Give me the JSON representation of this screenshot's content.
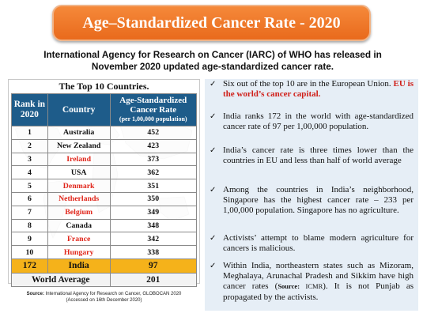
{
  "banner": {
    "title": "Age–Standardized Cancer Rate - 2020"
  },
  "subtitle": "International Agency for Research on Cancer (IARC) of WHO has released in November 2020 updated age-standardized cancer rate.",
  "table": {
    "title": "The Top 10 Countries.",
    "headers": {
      "rank_line1": "Rank in",
      "rank_line2": "2020",
      "country": "Country",
      "rate_line1": "Age-Standardized",
      "rate_line2": "Cancer Rate",
      "rate_line3": "(per 1,00,000 population)"
    },
    "rows": [
      {
        "rank": "1",
        "country": "Australia",
        "rate": "452",
        "eu": false
      },
      {
        "rank": "2",
        "country": "New Zealand",
        "rate": "423",
        "eu": false
      },
      {
        "rank": "3",
        "country": "Ireland",
        "rate": "373",
        "eu": true
      },
      {
        "rank": "4",
        "country": "USA",
        "rate": "362",
        "eu": false
      },
      {
        "rank": "5",
        "country": "Denmark",
        "rate": "351",
        "eu": true
      },
      {
        "rank": "6",
        "country": "Netherlands",
        "rate": "350",
        "eu": true
      },
      {
        "rank": "7",
        "country": "Belgium",
        "rate": "349",
        "eu": true
      },
      {
        "rank": "8",
        "country": "Canada",
        "rate": "348",
        "eu": false
      },
      {
        "rank": "9",
        "country": "France",
        "rate": "342",
        "eu": true
      },
      {
        "rank": "10",
        "country": "Hungary",
        "rate": "338",
        "eu": true
      }
    ],
    "india": {
      "rank": "172",
      "country": "India",
      "rate": "97"
    },
    "world": {
      "label": "World Average",
      "rate": "201"
    }
  },
  "source": {
    "label": "Source:",
    "text": "International Agency for Research on Cancer, GLOBOCAN 2020",
    "accessed": "(Accessed on 16th December 2020)"
  },
  "bullets": {
    "b1": {
      "text": "Six out of the top 10 are in the European Union.",
      "highlight": "EU is the world’s cancer capital."
    },
    "b2": {
      "text": "India ranks 172 in the world with age-standardized cancer rate of 97 per 1,00,000 population."
    },
    "b3": {
      "text": "India’s cancer rate is three times lower than the countries in EU and less than half of world average"
    },
    "b4": {
      "text": "Among the countries in India’s neighborhood, Singapore has the highest cancer rate – 233 per 1,00,000 population. Singapore has no agriculture."
    },
    "b5": {
      "text": "Activists’ attempt to blame modern agriculture for cancers is malicious."
    },
    "b6": {
      "text_before": "Within India, northeastern states such as Mizoram, Meghalaya, Arunachal Pradesh and Sikkim have high cancer rates (",
      "source_label": "Source:",
      "source_name": " ICMR",
      "text_after": "). It is not Punjab as propagated by the activists."
    }
  },
  "colors": {
    "banner": "#e96a1c",
    "header": "#1e5c8a",
    "eu_red": "#e0261b",
    "india_row": "#f5b21a",
    "bullet_panel": "#e6eef6"
  },
  "icons": {
    "bullet": "check-mark-icon",
    "background": "world-map"
  }
}
